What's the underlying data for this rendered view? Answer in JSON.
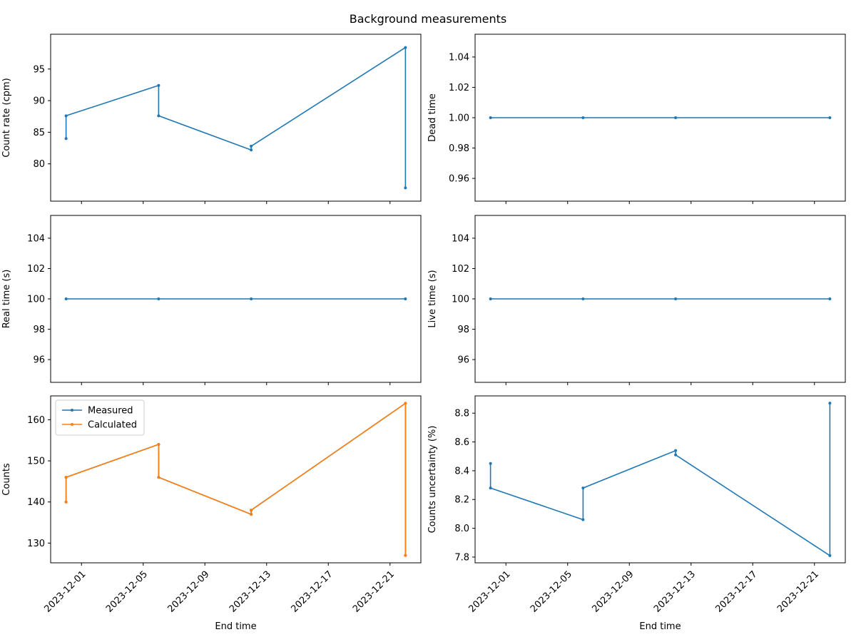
{
  "figure": {
    "title": "Background measurements"
  },
  "colors": {
    "measured": "#1f77b4",
    "calculated": "#ff7f0e"
  },
  "chart_data": [
    {
      "type": "line",
      "id": "count_rate",
      "title": "",
      "xlabel": "",
      "ylabel": "Count rate (cpm)",
      "x": [
        "2023-11-30",
        "2023-11-30",
        "2023-12-06",
        "2023-12-06",
        "2023-12-12",
        "2023-12-12",
        "2023-12-22",
        "2023-12-22"
      ],
      "series": [
        {
          "name": "",
          "color": "#1f77b4",
          "values": [
            84.0,
            87.6,
            92.4,
            87.6,
            82.2,
            82.8,
            98.4,
            76.2
          ]
        }
      ],
      "ylim": [
        74.1,
        100.5
      ],
      "yticks": [
        80,
        85,
        90,
        95
      ],
      "show_xticklabels": false,
      "legend": "none"
    },
    {
      "type": "line",
      "id": "dead_time",
      "title": "",
      "xlabel": "",
      "ylabel": "Dead time",
      "x": [
        "2023-11-30",
        "2023-12-06",
        "2023-12-12",
        "2023-12-22"
      ],
      "series": [
        {
          "name": "",
          "color": "#1f77b4",
          "values": [
            1.0,
            1.0,
            1.0,
            1.0
          ]
        }
      ],
      "ylim": [
        0.945,
        1.055
      ],
      "yticks": [
        0.96,
        0.98,
        1.0,
        1.02,
        1.04
      ],
      "show_xticklabels": false,
      "legend": "none"
    },
    {
      "type": "line",
      "id": "real_time",
      "title": "",
      "xlabel": "",
      "ylabel": "Real time (s)",
      "x": [
        "2023-11-30",
        "2023-12-06",
        "2023-12-12",
        "2023-12-22"
      ],
      "series": [
        {
          "name": "",
          "color": "#1f77b4",
          "values": [
            100,
            100,
            100,
            100
          ]
        }
      ],
      "ylim": [
        94.5,
        105.5
      ],
      "yticks": [
        96,
        98,
        100,
        102,
        104
      ],
      "show_xticklabels": false,
      "legend": "none"
    },
    {
      "type": "line",
      "id": "live_time",
      "title": "",
      "xlabel": "",
      "ylabel": "Live time (s)",
      "x": [
        "2023-11-30",
        "2023-12-06",
        "2023-12-12",
        "2023-12-22"
      ],
      "series": [
        {
          "name": "",
          "color": "#1f77b4",
          "values": [
            100,
            100,
            100,
            100
          ]
        }
      ],
      "ylim": [
        94.5,
        105.5
      ],
      "yticks": [
        96,
        98,
        100,
        102,
        104
      ],
      "show_xticklabels": false,
      "legend": "none"
    },
    {
      "type": "line",
      "id": "counts",
      "title": "",
      "xlabel": "End time",
      "ylabel": "Counts",
      "x": [
        "2023-11-30",
        "2023-11-30",
        "2023-12-06",
        "2023-12-06",
        "2023-12-12",
        "2023-12-12",
        "2023-12-22",
        "2023-12-22"
      ],
      "series": [
        {
          "name": "Measured",
          "color": "#1f77b4",
          "values": [
            140,
            146,
            154,
            146,
            137,
            138,
            164,
            127
          ]
        },
        {
          "name": "Calculated",
          "color": "#ff7f0e",
          "values": [
            140,
            146,
            154,
            146,
            137,
            138,
            164,
            127
          ]
        }
      ],
      "ylim": [
        125.2,
        165.8
      ],
      "yticks": [
        130,
        140,
        150,
        160
      ],
      "show_xticklabels": true,
      "legend": "upper-left"
    },
    {
      "type": "line",
      "id": "counts_uncertainty",
      "title": "",
      "xlabel": "End time",
      "ylabel": "Counts uncertainty (%)",
      "x": [
        "2023-11-30",
        "2023-11-30",
        "2023-12-06",
        "2023-12-06",
        "2023-12-12",
        "2023-12-12",
        "2023-12-22",
        "2023-12-22"
      ],
      "series": [
        {
          "name": "",
          "color": "#1f77b4",
          "values": [
            8.45,
            8.28,
            8.06,
            8.28,
            8.54,
            8.51,
            7.81,
            8.87
          ]
        }
      ],
      "ylim": [
        7.76,
        8.92
      ],
      "yticks": [
        7.8,
        8.0,
        8.2,
        8.4,
        8.6,
        8.8
      ],
      "show_xticklabels": true,
      "legend": "none"
    }
  ],
  "xaxis": {
    "min": "2023-11-29",
    "max": "2023-12-23",
    "ticks": [
      "2023-12-01",
      "2023-12-05",
      "2023-12-09",
      "2023-12-13",
      "2023-12-17",
      "2023-12-21"
    ]
  }
}
